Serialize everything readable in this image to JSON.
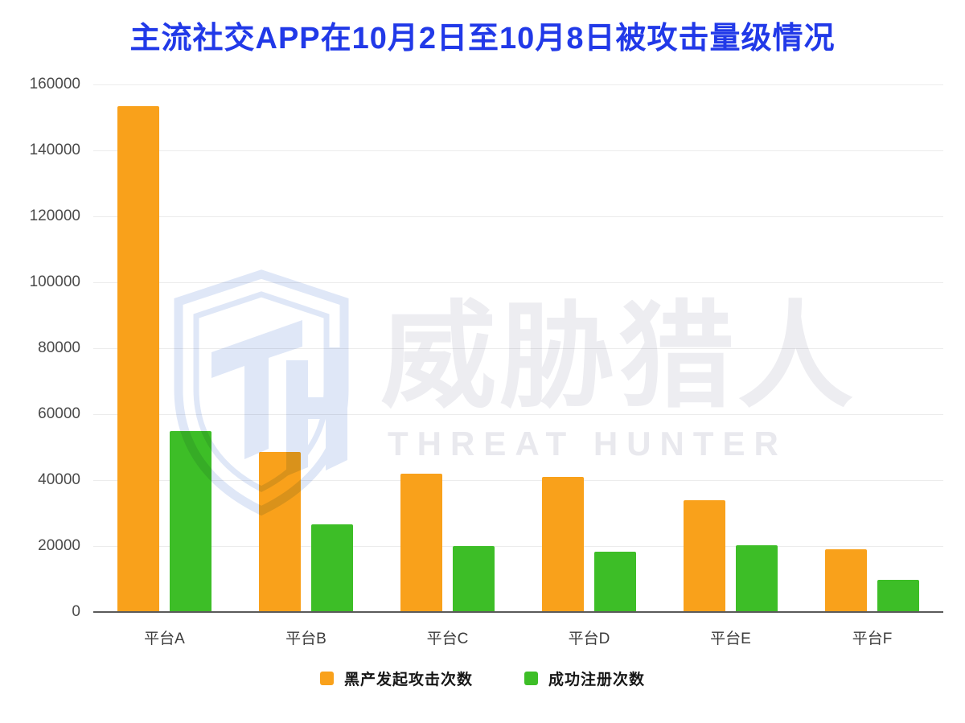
{
  "title": "主流社交APP在10月2日至10月8日被攻击量级情况",
  "watermark": {
    "logo_icon": "shield-th-logo",
    "cn": "威胁猎人",
    "en": "THREAT HUNTER"
  },
  "colors": {
    "attack_orange": "#F9A11B",
    "register_green": "#3DBE27",
    "title_blue": "#2139E8",
    "grid": "#ececec",
    "axis": "#5a5a5a",
    "tick_text": "#4a4a4a",
    "xlabel_text": "#3c3c3c",
    "legend_text": "#161616",
    "watermark_gray": "#ededf1",
    "watermark_blue": "#dfe7f7"
  },
  "chart_data": {
    "type": "bar",
    "title": "主流社交APP在10月2日至10月8日被攻击量级情况",
    "categories": [
      "平台A",
      "平台B",
      "平台C",
      "平台D",
      "平台E",
      "平台F"
    ],
    "series": [
      {
        "name": "黑产发起攻击次数",
        "color": "#F9A11B",
        "values": [
          153500,
          48500,
          42000,
          41000,
          34000,
          19000
        ]
      },
      {
        "name": "成功注册次数",
        "color": "#3DBE27",
        "values": [
          55000,
          26500,
          20000,
          18200,
          20300,
          9700
        ]
      }
    ],
    "ylim": [
      0,
      160000
    ],
    "ytick_step": 20000,
    "yticks": [
      "160000",
      "140000",
      "120000",
      "100000",
      "80000",
      "60000",
      "40000",
      "20000",
      "0"
    ],
    "xlabel": "",
    "ylabel": "",
    "grid": true,
    "legend_position": "bottom"
  }
}
